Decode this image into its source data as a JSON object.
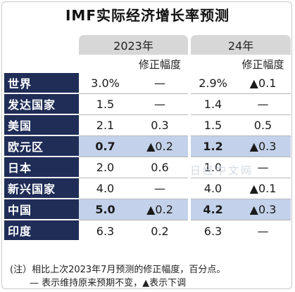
{
  "title": "IMF实际经济增长率预测",
  "headers": {
    "year1": "2023年",
    "year2": "24年",
    "revision": "修正幅度"
  },
  "rows": [
    {
      "name": "世界",
      "v23": "3.0%",
      "r23": "—",
      "v24": "2.9%",
      "r24": "▲0.1",
      "highlight": false
    },
    {
      "name": "发达国家",
      "v23": "1.5",
      "r23": "—",
      "v24": "1.4",
      "r24": "—",
      "highlight": false
    },
    {
      "name": "美国",
      "v23": "2.1",
      "r23": "0.3",
      "v24": "1.5",
      "r24": "0.5",
      "highlight": false
    },
    {
      "name": "欧元区",
      "v23": "0.7",
      "r23": "▲0.2",
      "v24": "1.2",
      "r24": "▲0.3",
      "highlight": true
    },
    {
      "name": "日本",
      "v23": "2.0",
      "r23": "0.6",
      "v24": "1.0",
      "r24": "—",
      "highlight": false
    },
    {
      "name": "新兴国家",
      "v23": "4.0",
      "r23": "—",
      "v24": "4.0",
      "r24": "▲0.1",
      "highlight": false
    },
    {
      "name": "中国",
      "v23": "5.0",
      "r23": "▲0.2",
      "v24": "4.2",
      "r24": "▲0.3",
      "highlight": true
    },
    {
      "name": "印度",
      "v23": "6.3",
      "r23": "0.2",
      "v24": "6.3",
      "r24": "—",
      "highlight": false
    }
  ],
  "notes": {
    "line1": "(注）相比上次2023年7月预测的修正幅度，百分点。",
    "line2": "— 表示维持原来预期不变，▲表示下调"
  },
  "watermark": "日经中文网",
  "colors": {
    "name_cell": "#1f2d57",
    "highlight": "#c3d2ea",
    "year_header": "#d7d7d7"
  }
}
